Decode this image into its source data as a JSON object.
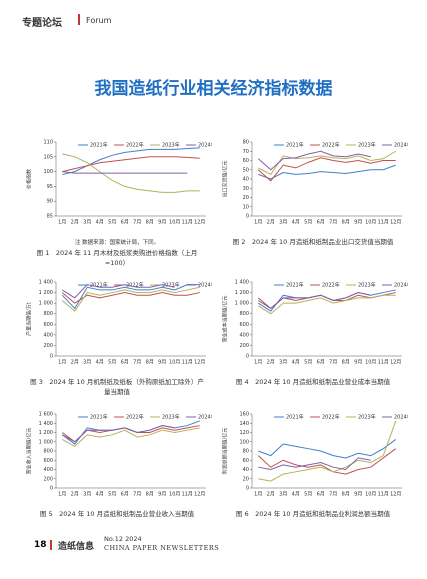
{
  "header": {
    "section": "专题论坛",
    "section_en": "Forum"
  },
  "title": "我国造纸行业相关经济指标数据",
  "note": "注 数据来源：国家统计局，下同。",
  "footer": {
    "page": "18",
    "brand": "造纸信息",
    "issue": "No.12 2024",
    "brand_en": "CHINA PAPER NEWSLETTERS"
  },
  "chart_data": [
    {
      "type": "line",
      "caption": "图 1　2024 年 11 月木材及纸浆类购进价格指数（上月 =100）",
      "y_label": "价格指数",
      "categories": [
        "1月",
        "2月",
        "3月",
        "4月",
        "5月",
        "6月",
        "7月",
        "8月",
        "9月",
        "10月",
        "11月",
        "12月"
      ],
      "ylim": [
        85,
        110
      ],
      "yticks": [
        85,
        90,
        95,
        100,
        105,
        110
      ],
      "grid": false,
      "series": [
        {
          "name": "2021年",
          "color": "#3f7fcf",
          "values": [
            99,
            100,
            102,
            104,
            105.5,
            106.5,
            107,
            107.5,
            107.5,
            107.5,
            107.8,
            108
          ]
        },
        {
          "name": "2022年",
          "color": "#c0504d",
          "values": [
            100,
            101,
            102,
            103,
            103.5,
            104,
            104.5,
            105,
            105,
            105,
            104.8,
            104.5
          ]
        },
        {
          "name": "2023年",
          "color": "#b5b05a",
          "values": [
            106,
            105,
            103,
            100,
            97,
            95,
            94,
            93.5,
            93,
            93,
            93.5,
            93.5
          ]
        },
        {
          "name": "2024年",
          "color": "#7f5fa8",
          "values": [
            100,
            99.5,
            99.5,
            99.5,
            99.5,
            99.5,
            99.5,
            99.5,
            99.5,
            99.5,
            99.5,
            null
          ]
        }
      ]
    },
    {
      "type": "line",
      "caption": "图 2　2024 年 10 月造纸和纸制品业出口交货值当期值",
      "y_label": "出口交货值/亿元",
      "categories": [
        "1月",
        "2月",
        "3月",
        "4月",
        "5月",
        "6月",
        "7月",
        "8月",
        "9月",
        "10月",
        "11月",
        "12月"
      ],
      "ylim": [
        0,
        80
      ],
      "yticks": [
        0,
        10,
        20,
        30,
        40,
        50,
        60,
        70,
        80
      ],
      "grid": false,
      "series": [
        {
          "name": "2021年",
          "color": "#3f7fcf",
          "values": [
            45,
            40,
            47,
            45,
            46,
            48,
            47,
            46,
            48,
            50,
            50,
            55
          ]
        },
        {
          "name": "2022年",
          "color": "#c0504d",
          "values": [
            50,
            38,
            55,
            52,
            58,
            63,
            60,
            58,
            60,
            57,
            60,
            60
          ]
        },
        {
          "name": "2023年",
          "color": "#b5b05a",
          "values": [
            52,
            45,
            65,
            62,
            63,
            65,
            63,
            62,
            65,
            60,
            62,
            70
          ]
        },
        {
          "name": "2024年",
          "color": "#7f5fa8",
          "values": [
            62,
            50,
            62,
            63,
            67,
            70,
            65,
            64,
            67,
            64,
            null,
            null
          ]
        }
      ]
    },
    {
      "type": "line",
      "caption": "图 3　2024 年 10 月机制纸及纸板（外购原纸加工除外）产量当期值",
      "y_label": "产量当期值/万t",
      "categories": [
        "1月",
        "2月",
        "3月",
        "4月",
        "5月",
        "6月",
        "7月",
        "8月",
        "9月",
        "10月",
        "11月",
        "12月"
      ],
      "ylim": [
        0,
        1400
      ],
      "yticks": [
        0,
        200,
        400,
        600,
        800,
        {
          "value": 1000,
          "label": "1 000"
        },
        {
          "value": 1200,
          "label": "1 200"
        },
        {
          "value": 1400,
          "label": "1 400"
        }
      ],
      "grid": false,
      "series": [
        {
          "name": "2021年",
          "color": "#3f7fcf",
          "values": [
            1150,
            900,
            1300,
            1250,
            1250,
            1300,
            1250,
            1250,
            1300,
            1250,
            1350,
            1350
          ]
        },
        {
          "name": "2022年",
          "color": "#c0504d",
          "values": [
            1200,
            1000,
            1150,
            1100,
            1150,
            1200,
            1150,
            1150,
            1200,
            1150,
            1150,
            1200
          ]
        },
        {
          "name": "2023年",
          "color": "#b5b05a",
          "values": [
            1050,
            850,
            1200,
            1150,
            1200,
            1250,
            1200,
            1200,
            1250,
            1200,
            1250,
            1300
          ]
        },
        {
          "name": "2024年",
          "color": "#7f5fa8",
          "values": [
            1250,
            1100,
            1350,
            1300,
            1300,
            1350,
            1300,
            1300,
            1350,
            1300,
            null,
            null
          ]
        }
      ]
    },
    {
      "type": "line",
      "caption": "图 4　2024 年 10 月造纸和纸制品业营业成本当期值",
      "y_label": "营业成本当期值/亿元",
      "categories": [
        "1月",
        "2月",
        "3月",
        "4月",
        "5月",
        "6月",
        "7月",
        "8月",
        "9月",
        "10月",
        "11月",
        "12月"
      ],
      "ylim": [
        0,
        1400
      ],
      "yticks": [
        0,
        200,
        400,
        600,
        800,
        {
          "value": 1000,
          "label": "1 000"
        },
        {
          "value": 1200,
          "label": "1 200"
        },
        {
          "value": 1400,
          "label": "1 400"
        }
      ],
      "grid": false,
      "series": [
        {
          "name": "2021年",
          "color": "#3f7fcf",
          "values": [
            1000,
            850,
            1150,
            1100,
            1100,
            1150,
            1050,
            1100,
            1200,
            1150,
            1200,
            1250
          ]
        },
        {
          "name": "2022年",
          "color": "#c0504d",
          "values": [
            1100,
            900,
            1100,
            1050,
            1100,
            1150,
            1050,
            1050,
            1150,
            1100,
            1150,
            1200
          ]
        },
        {
          "name": "2023年",
          "color": "#b5b05a",
          "values": [
            950,
            800,
            1000,
            1000,
            1050,
            1100,
            1000,
            1050,
            1100,
            1100,
            1150,
            1150
          ]
        },
        {
          "name": "2024年",
          "color": "#7f5fa8",
          "values": [
            1050,
            900,
            1100,
            1100,
            1100,
            1150,
            1050,
            1100,
            1200,
            1150,
            null,
            null
          ]
        }
      ]
    },
    {
      "type": "line",
      "caption": "图 5　2024 年 10 月造纸和纸制品业营业收入当期值",
      "y_label": "营业收入当期值/亿元",
      "categories": [
        "1月",
        "2月",
        "3月",
        "4月",
        "5月",
        "6月",
        "7月",
        "8月",
        "9月",
        "10月",
        "11月",
        "12月"
      ],
      "ylim": [
        0,
        1600
      ],
      "yticks": [
        0,
        200,
        400,
        600,
        800,
        {
          "value": 1000,
          "label": "1 000"
        },
        {
          "value": 1200,
          "label": "1 200"
        },
        {
          "value": 1400,
          "label": "1 400"
        },
        {
          "value": 1600,
          "label": "1 600"
        }
      ],
      "grid": false,
      "series": [
        {
          "name": "2021年",
          "color": "#3f7fcf",
          "values": [
            1150,
            950,
            1300,
            1250,
            1250,
            1300,
            1200,
            1250,
            1350,
            1300,
            1350,
            1450
          ]
        },
        {
          "name": "2022年",
          "color": "#c0504d",
          "values": [
            1200,
            1000,
            1250,
            1200,
            1250,
            1300,
            1200,
            1200,
            1300,
            1250,
            1300,
            1350
          ]
        },
        {
          "name": "2023年",
          "color": "#b5b05a",
          "values": [
            1050,
            900,
            1150,
            1100,
            1150,
            1250,
            1100,
            1150,
            1250,
            1200,
            1250,
            1300
          ]
        },
        {
          "name": "2024年",
          "color": "#7f5fa8",
          "values": [
            1150,
            1000,
            1250,
            1250,
            1250,
            1300,
            1200,
            1250,
            1350,
            1300,
            null,
            null
          ]
        }
      ]
    },
    {
      "type": "line",
      "caption": "图 6　2024 年 10 月造纸和纸制品业利润总额当期值",
      "y_label": "利润总额当期值/亿元",
      "categories": [
        "1月",
        "2月",
        "3月",
        "4月",
        "5月",
        "6月",
        "7月",
        "8月",
        "9月",
        "10月",
        "11月",
        "12月"
      ],
      "ylim": [
        0,
        160
      ],
      "yticks": [
        0,
        20,
        40,
        60,
        80,
        100,
        120,
        140,
        160
      ],
      "grid": false,
      "series": [
        {
          "name": "2021年",
          "color": "#3f7fcf",
          "values": [
            80,
            70,
            95,
            90,
            85,
            80,
            70,
            65,
            75,
            70,
            85,
            105
          ]
        },
        {
          "name": "2022年",
          "color": "#c0504d",
          "values": [
            70,
            45,
            60,
            50,
            45,
            50,
            35,
            30,
            40,
            45,
            65,
            85
          ]
        },
        {
          "name": "2023年",
          "color": "#b5b05a",
          "values": [
            20,
            15,
            30,
            35,
            40,
            45,
            35,
            45,
            60,
            55,
            70,
            145
          ]
        },
        {
          "name": "2024年",
          "color": "#7f5fa8",
          "values": [
            45,
            40,
            50,
            45,
            50,
            55,
            45,
            40,
            65,
            60,
            null,
            null
          ]
        }
      ]
    }
  ]
}
